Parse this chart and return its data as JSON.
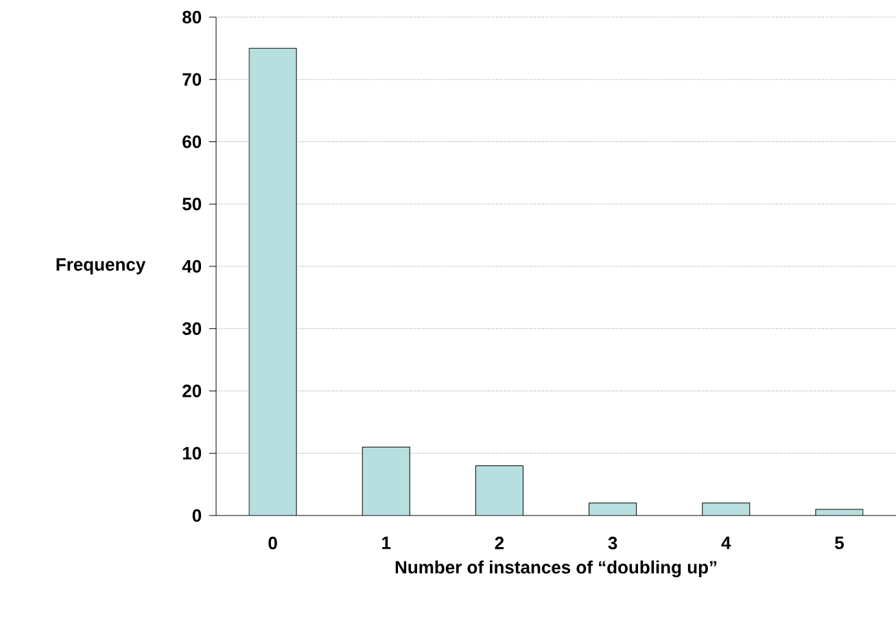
{
  "chart_data": {
    "type": "bar",
    "categories": [
      "0",
      "1",
      "2",
      "3",
      "4",
      "5"
    ],
    "values": [
      75,
      11,
      8,
      2,
      2,
      1
    ],
    "color": "#b8dfe0",
    "xlabel": "Number of instances of “doubling up”",
    "ylabel": "Frequency",
    "ylim": [
      0,
      80
    ],
    "yticks": [
      0,
      10,
      20,
      30,
      40,
      50,
      60,
      70,
      80
    ],
    "grid": "y"
  }
}
